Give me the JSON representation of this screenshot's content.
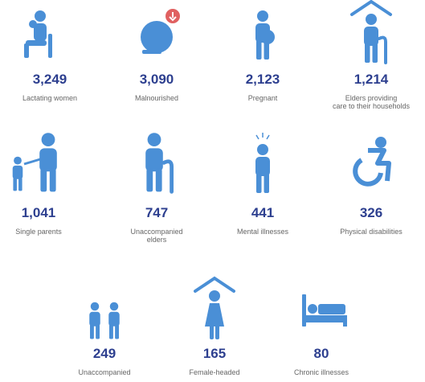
{
  "items": [
    {
      "value": "3,249",
      "label": [
        "Lactating women"
      ]
    },
    {
      "value": "3,090",
      "label": [
        "Malnourished"
      ]
    },
    {
      "value": "2,123",
      "label": [
        "Pregnant"
      ]
    },
    {
      "value": "1,214",
      "label": [
        "Elders providing",
        "care to their households"
      ]
    },
    {
      "value": "1,041",
      "label": [
        "Single parents"
      ]
    },
    {
      "value": "747",
      "label": [
        "Unaccompanied",
        "elders"
      ]
    },
    {
      "value": "441",
      "label": [
        "Mental illnesses"
      ]
    },
    {
      "value": "326",
      "label": [
        "Physical disabilities"
      ]
    },
    {
      "value": "249",
      "label": [
        "Unaccompanied"
      ]
    },
    {
      "value": "165",
      "label": [
        "Female-headed"
      ]
    },
    {
      "value": "80",
      "label": [
        "Chronic illnesses"
      ]
    }
  ]
}
